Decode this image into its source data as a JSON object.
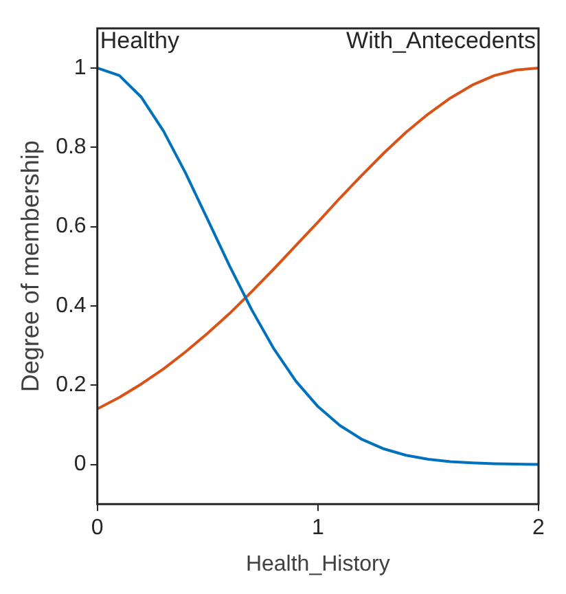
{
  "chart_data": {
    "type": "line",
    "xlabel": "Health_History",
    "ylabel": "Degree of membership",
    "x": [
      0,
      0.1,
      0.2,
      0.3,
      0.4,
      0.5,
      0.6,
      0.7,
      0.8,
      0.9,
      1,
      1.1,
      1.2,
      1.3,
      1.4,
      1.5,
      1.6,
      1.7,
      1.8,
      1.9,
      2
    ],
    "series": [
      {
        "name": "Healthy",
        "color": "#0072bd",
        "values": [
          1,
          0.981,
          0.926,
          0.841,
          0.735,
          0.618,
          0.5,
          0.39,
          0.292,
          0.21,
          0.146,
          0.098,
          0.063,
          0.039,
          0.023,
          0.013,
          0.007,
          0.004,
          0.002,
          0.001,
          0
        ]
      },
      {
        "name": "With_Antecedents",
        "color": "#d95319",
        "values": [
          0.14,
          0.169,
          0.203,
          0.241,
          0.284,
          0.331,
          0.381,
          0.436,
          0.493,
          0.552,
          0.611,
          0.672,
          0.73,
          0.786,
          0.838,
          0.884,
          0.924,
          0.957,
          0.981,
          0.995,
          1
        ]
      }
    ],
    "xlim": [
      0,
      2
    ],
    "xticks": [
      0,
      1,
      2
    ],
    "ylim": [
      -0.1,
      1.1
    ],
    "yticks": [
      0,
      0.2,
      0.4,
      0.6,
      0.8,
      1
    ],
    "grid": false,
    "legend": false,
    "marker": "none",
    "line_style": "solid"
  }
}
